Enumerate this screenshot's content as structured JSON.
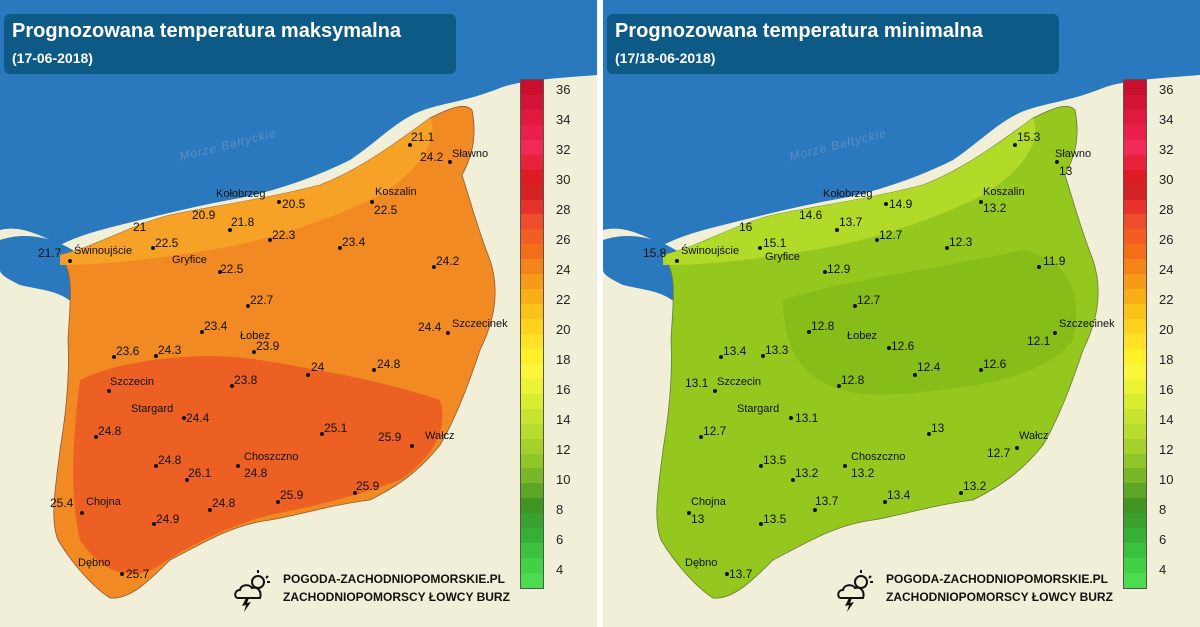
{
  "colors": {
    "sea": "#2a78bd",
    "land": "#f2efd9",
    "title_bg": "#0e5a86"
  },
  "scale_labels": [
    "36",
    "34",
    "32",
    "30",
    "28",
    "26",
    "24",
    "22",
    "20",
    "18",
    "16",
    "14",
    "12",
    "10",
    "8",
    "6",
    "4"
  ],
  "scale_colors": [
    "#c8102e",
    "#d41436",
    "#e01a3e",
    "#ea1f4a",
    "#f02a55",
    "#e8223a",
    "#dd1b22",
    "#d32222",
    "#e6322a",
    "#ed4d2a",
    "#f25d22",
    "#f46e1a",
    "#f58418",
    "#f79a1a",
    "#f8ae16",
    "#fbc21a",
    "#ffd21f",
    "#ffe227",
    "#fff02a",
    "#fbf63a",
    "#eaf336",
    "#d8ec32",
    "#c8e430",
    "#b8dd2e",
    "#a4d22a",
    "#8fc62a",
    "#79b628",
    "#5ea626",
    "#3f951f",
    "#3aa030",
    "#38b035",
    "#3cc23e",
    "#42d046",
    "#4cdc50"
  ],
  "maps": [
    {
      "title": "Prognozowana temperatura maksymalna",
      "date": "(17-06-2018)",
      "sea_label": "Morze Bałtyckie",
      "region_fill": "#f18a22",
      "cities": [
        "Sławno",
        "Kołobrzeg",
        "Koszalin",
        "Świnoujście",
        "Gryfice",
        "Łobez",
        "Szczecinek",
        "Szczecin",
        "Stargard",
        "Wałcz",
        "Choszczno",
        "Chojna",
        "Dębno"
      ],
      "values": [
        "21.1",
        "24.2",
        "20.9",
        "20.5",
        "22.5",
        "21",
        "21.8",
        "22.3",
        "23.4",
        "21.7",
        "22.5",
        "22.5",
        "24.2",
        "22.7",
        "23.4",
        "24.4",
        "23.6",
        "24.3",
        "23.9",
        "24",
        "23.8",
        "24.8",
        "24.4",
        "25.1",
        "25.9",
        "24.8",
        "24.8",
        "26.1",
        "24.8",
        "25.4",
        "24.9",
        "24.8",
        "25.9",
        "25.9",
        "25.7"
      ],
      "logo_line1": "POGODA-ZACHODNIOPOMORSKIE.PL",
      "logo_line2": "ZACHODNIOPOMORSCY ŁOWCY BURZ"
    },
    {
      "title": "Prognozowana temperatura minimalna",
      "date": "(17/18-06-2018)",
      "sea_label": "Morze Bałtyckie",
      "region_fill": "#95c81e",
      "cities": [
        "Sławno",
        "Kołobrzeg",
        "Koszalin",
        "Świnoujście",
        "Gryfice",
        "Łobez",
        "Szczecinek",
        "Szczecin",
        "Stargard",
        "Wałcz",
        "Choszczno",
        "Chojna",
        "Dębno"
      ],
      "values": [
        "15.3",
        "13",
        "14.6",
        "14.9",
        "13.2",
        "16",
        "13.7",
        "12.7",
        "12.3",
        "15.8",
        "15.1",
        "12.9",
        "11.9",
        "12.7",
        "12.8",
        "12.6",
        "13.4",
        "13.3",
        "12.1",
        "12.6",
        "12.8",
        "12.4",
        "13.1",
        "13.1",
        "13",
        "12.7",
        "12.7",
        "13.5",
        "13.2",
        "13.2",
        "13.7",
        "13.4",
        "13.2",
        "13",
        "13.5",
        "13.7"
      ],
      "logo_line1": "POGODA-ZACHODNIOPOMORSKIE.PL",
      "logo_line2": "ZACHODNIOPOMORSCY ŁOWCY BURZ"
    }
  ]
}
